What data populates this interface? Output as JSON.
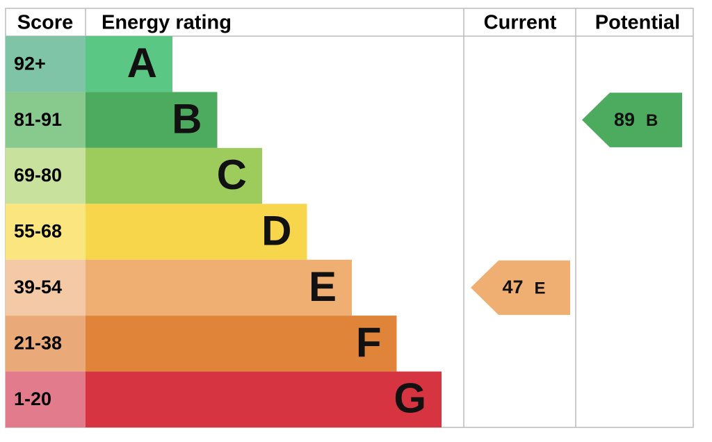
{
  "header": {
    "score": "Score",
    "rating": "Energy rating",
    "current": "Current",
    "potential": "Potential"
  },
  "bands": [
    {
      "range": "92+",
      "letter": "A",
      "color": "#5ac785",
      "score_color": "#7fc4a6"
    },
    {
      "range": "81-91",
      "letter": "B",
      "color": "#4dab5f",
      "score_color": "#88c98e"
    },
    {
      "range": "69-80",
      "letter": "C",
      "color": "#9dcc5c",
      "score_color": "#c8e19c"
    },
    {
      "range": "55-68",
      "letter": "D",
      "color": "#f7d64b",
      "score_color": "#fbe57e"
    },
    {
      "range": "39-54",
      "letter": "E",
      "color": "#efae72",
      "score_color": "#f4caa6"
    },
    {
      "range": "21-38",
      "letter": "F",
      "color": "#e0843a",
      "score_color": "#eaa978"
    },
    {
      "range": "1-20",
      "letter": "G",
      "color": "#d63441",
      "score_color": "#e27c8d"
    }
  ],
  "current": {
    "value": 47,
    "letter": "E"
  },
  "potential": {
    "value": 89,
    "letter": "B"
  }
}
